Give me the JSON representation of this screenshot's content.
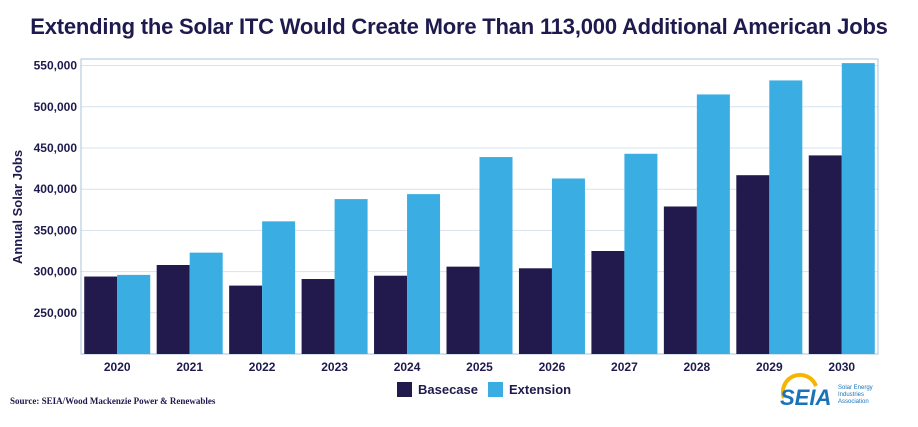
{
  "chart_data": {
    "type": "bar",
    "title": "Extending the Solar ITC Would Create More Than 113,000 Additional American Jobs",
    "ylabel": "Annual Solar Jobs",
    "xlabel": "",
    "categories": [
      "2020",
      "2021",
      "2022",
      "2023",
      "2024",
      "2025",
      "2026",
      "2027",
      "2028",
      "2029",
      "2030"
    ],
    "series": [
      {
        "name": "Basecase",
        "color": "#221a4c",
        "values": [
          294000,
          308000,
          283000,
          291000,
          295000,
          306000,
          304000,
          325000,
          379000,
          417000,
          441000
        ]
      },
      {
        "name": "Extension",
        "color": "#3aaee2",
        "values": [
          296000,
          323000,
          361000,
          388000,
          394000,
          439000,
          413000,
          443000,
          515000,
          532000,
          553000
        ]
      }
    ],
    "ylim": [
      200000,
      558000
    ],
    "yticks": [
      250000,
      300000,
      350000,
      400000,
      450000,
      500000,
      550000
    ],
    "ytick_labels": [
      "250,000",
      "300,000",
      "350,000",
      "400,000",
      "450,000",
      "500,000",
      "550,000"
    ],
    "grid": true,
    "legend_position": "bottom-center"
  },
  "source_text": "Source: SEIA/Wood Mackenzie Power & Renewables",
  "logo": {
    "word": "SEIA",
    "tagline_lines": [
      "Solar Energy",
      "Industries",
      "Association"
    ],
    "colors": {
      "ring": "#f7b500",
      "text": "#1a73b8"
    }
  },
  "colors": {
    "plot_border": "#a9c4dc",
    "grid": "#d6e3ef",
    "text": "#1e1a4d"
  }
}
